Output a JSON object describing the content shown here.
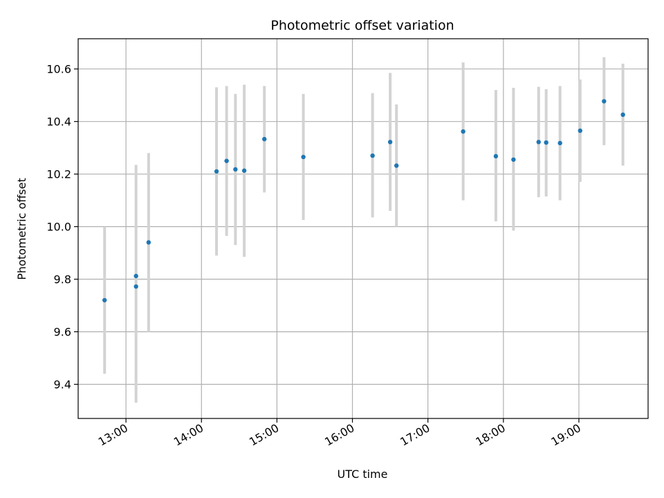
{
  "chart_data": {
    "type": "scatter",
    "title": "Photometric offset variation",
    "xlabel": "UTC time",
    "ylabel": "Photometric offset",
    "x_is_time": true,
    "xlim": [
      "12:22",
      "19:55"
    ],
    "ylim": [
      9.27,
      10.715
    ],
    "xticks": [
      "13:00",
      "14:00",
      "15:00",
      "16:00",
      "17:00",
      "18:00",
      "19:00"
    ],
    "yticks": [
      9.4,
      9.6,
      9.8,
      10.0,
      10.2,
      10.4,
      10.6
    ],
    "ytick_labels": [
      "9.4",
      "9.6",
      "9.8",
      "10.0",
      "10.2",
      "10.4",
      "10.6"
    ],
    "grid": true,
    "marker_color": "#1f77b4",
    "errorbar_color": "#d3d3d3",
    "series": [
      {
        "points": [
          {
            "t": "12:43",
            "y": 9.72,
            "err_low": 9.44,
            "err_high": 10.0
          },
          {
            "t": "13:08",
            "y": 9.772,
            "err_low": 9.33,
            "err_high": 10.235
          },
          {
            "t": "13:08",
            "y": 9.812
          },
          {
            "t": "13:18",
            "y": 9.94,
            "err_low": 9.6,
            "err_high": 10.28
          },
          {
            "t": "14:12",
            "y": 10.21,
            "err_low": 9.89,
            "err_high": 10.53
          },
          {
            "t": "14:20",
            "y": 10.25,
            "err_low": 9.965,
            "err_high": 10.535
          },
          {
            "t": "14:27",
            "y": 10.218,
            "err_low": 9.93,
            "err_high": 10.505
          },
          {
            "t": "14:34",
            "y": 10.213,
            "err_low": 9.885,
            "err_high": 10.54
          },
          {
            "t": "14:50",
            "y": 10.333,
            "err_low": 10.13,
            "err_high": 10.535
          },
          {
            "t": "15:21",
            "y": 10.265,
            "err_low": 10.025,
            "err_high": 10.505
          },
          {
            "t": "16:16",
            "y": 10.27,
            "err_low": 10.035,
            "err_high": 10.508
          },
          {
            "t": "16:30",
            "y": 10.322,
            "err_low": 10.06,
            "err_high": 10.585
          },
          {
            "t": "16:35",
            "y": 10.232,
            "err_low": 10.0,
            "err_high": 10.465
          },
          {
            "t": "17:28",
            "y": 10.362,
            "err_low": 10.1,
            "err_high": 10.625
          },
          {
            "t": "17:54",
            "y": 10.268,
            "err_low": 10.02,
            "err_high": 10.52
          },
          {
            "t": "18:08",
            "y": 10.255,
            "err_low": 9.985,
            "err_high": 10.528
          },
          {
            "t": "18:28",
            "y": 10.322,
            "err_low": 10.112,
            "err_high": 10.532
          },
          {
            "t": "18:34",
            "y": 10.32,
            "err_low": 10.115,
            "err_high": 10.523
          },
          {
            "t": "18:45",
            "y": 10.318,
            "err_low": 10.1,
            "err_high": 10.535
          },
          {
            "t": "19:01",
            "y": 10.365,
            "err_low": 10.17,
            "err_high": 10.56
          },
          {
            "t": "19:20",
            "y": 10.477,
            "err_low": 10.31,
            "err_high": 10.645
          },
          {
            "t": "19:35",
            "y": 10.426,
            "err_low": 10.232,
            "err_high": 10.62
          }
        ]
      }
    ]
  }
}
